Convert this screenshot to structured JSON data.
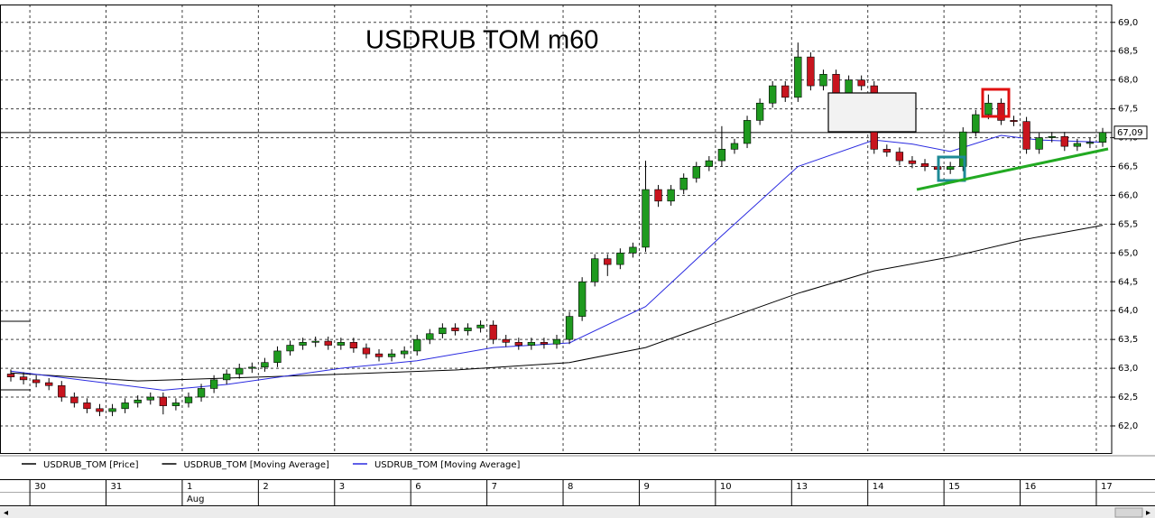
{
  "chart_data": {
    "type": "candlestick",
    "title": "USDRUB TOM  m60",
    "categories": [
      null,
      null,
      "30",
      null,
      null,
      null,
      null,
      null,
      "31",
      null,
      null,
      null,
      null,
      null,
      "1",
      null,
      null,
      null,
      null,
      null,
      "2",
      null,
      null,
      null,
      null,
      null,
      "3",
      null,
      null,
      null,
      null,
      null,
      "6",
      null,
      null,
      null,
      null,
      null,
      "7",
      null,
      null,
      null,
      null,
      null,
      "8",
      null,
      null,
      null,
      null,
      null,
      "9",
      null,
      null,
      null,
      null,
      null,
      "10",
      null,
      null,
      null,
      null,
      null,
      "13",
      null,
      null,
      null,
      null,
      null,
      "14",
      null,
      null,
      null,
      null,
      null,
      "15",
      null,
      null,
      null,
      null,
      null,
      "16",
      null,
      null,
      null,
      null,
      null,
      "17"
    ],
    "months": [
      null,
      null,
      null,
      null,
      null,
      null,
      null,
      null,
      null,
      null,
      null,
      null,
      null,
      null,
      "Aug",
      null,
      null,
      null,
      null,
      null,
      null,
      null,
      null,
      null,
      null,
      null,
      null,
      null,
      null,
      null,
      null,
      null,
      null,
      null,
      null,
      null,
      null,
      null,
      null,
      null,
      null,
      null,
      null,
      null,
      null,
      null,
      null,
      null,
      null,
      null,
      null,
      null,
      null,
      null,
      null,
      null,
      null,
      null,
      null,
      null,
      null,
      null,
      null,
      null,
      null,
      null,
      null,
      null,
      null,
      null,
      null,
      null,
      null,
      null,
      null,
      null,
      null,
      null,
      null,
      null,
      null,
      null,
      null,
      null,
      null,
      null,
      null
    ],
    "open": [
      62.9,
      62.85,
      62.8,
      62.75,
      62.7,
      62.5,
      62.4,
      62.3,
      62.25,
      62.3,
      62.4,
      62.45,
      62.5,
      62.35,
      62.4,
      62.5,
      62.65,
      62.8,
      62.9,
      63.0,
      63.02,
      63.1,
      63.3,
      63.4,
      63.45,
      63.47,
      63.4,
      63.45,
      63.35,
      63.25,
      63.2,
      63.25,
      63.3,
      63.5,
      63.6,
      63.7,
      63.65,
      63.7,
      63.75,
      63.5,
      63.45,
      63.4,
      63.45,
      63.42,
      63.5,
      63.9,
      64.5,
      64.9,
      64.8,
      65.0,
      65.1,
      66.1,
      65.9,
      66.1,
      66.3,
      66.5,
      66.6,
      66.8,
      66.9,
      67.3,
      67.6,
      67.9,
      67.7,
      68.4,
      67.9,
      68.1,
      67.4,
      68.0,
      67.9,
      66.8,
      66.75,
      66.6,
      66.55,
      66.5,
      66.45,
      66.5,
      67.1,
      67.4,
      67.6,
      67.3,
      67.28,
      66.8,
      67.0,
      67.02,
      66.85,
      66.9,
      66.92
    ],
    "high": [
      62.98,
      62.93,
      62.88,
      62.83,
      62.78,
      62.58,
      62.48,
      62.38,
      62.38,
      62.48,
      62.53,
      62.58,
      62.58,
      62.48,
      62.58,
      62.73,
      62.88,
      62.98,
      63.08,
      63.1,
      63.18,
      63.38,
      63.48,
      63.53,
      63.55,
      63.55,
      63.53,
      63.53,
      63.43,
      63.33,
      63.33,
      63.38,
      63.58,
      63.68,
      63.78,
      63.78,
      63.78,
      63.83,
      63.83,
      63.58,
      63.53,
      63.53,
      63.53,
      63.58,
      63.98,
      64.58,
      64.98,
      64.98,
      65.08,
      65.18,
      66.6,
      66.18,
      66.18,
      66.38,
      66.58,
      66.68,
      67.2,
      66.98,
      67.38,
      67.68,
      67.98,
      67.98,
      68.65,
      68.48,
      68.18,
      68.18,
      68.08,
      68.08,
      67.98,
      66.88,
      66.83,
      66.68,
      66.63,
      66.58,
      66.58,
      67.18,
      67.48,
      67.75,
      67.68,
      67.38,
      67.36,
      67.08,
      67.1,
      67.1,
      66.98,
      67.0,
      67.17
    ],
    "low": [
      62.77,
      62.72,
      62.67,
      62.62,
      62.42,
      62.32,
      62.22,
      62.17,
      62.17,
      62.22,
      62.32,
      62.37,
      62.2,
      62.27,
      62.32,
      62.42,
      62.57,
      62.72,
      62.82,
      62.92,
      62.94,
      63.02,
      63.22,
      63.32,
      63.37,
      63.32,
      63.32,
      63.27,
      63.17,
      63.12,
      63.12,
      63.17,
      63.22,
      63.42,
      63.52,
      63.57,
      63.57,
      63.62,
      63.42,
      63.37,
      63.32,
      63.32,
      63.34,
      63.34,
      63.42,
      63.82,
      64.42,
      64.6,
      64.72,
      64.92,
      65.02,
      65.8,
      65.82,
      66.02,
      66.22,
      66.42,
      66.5,
      66.72,
      66.82,
      67.22,
      67.52,
      67.62,
      67.62,
      67.82,
      67.82,
      67.3,
      67.32,
      67.82,
      66.72,
      66.67,
      66.52,
      66.47,
      66.42,
      66.37,
      66.37,
      66.42,
      67.02,
      67.32,
      67.22,
      67.2,
      66.72,
      66.72,
      66.92,
      66.77,
      66.77,
      66.82,
      66.84
    ],
    "close": [
      62.85,
      62.8,
      62.75,
      62.7,
      62.5,
      62.4,
      62.3,
      62.25,
      62.3,
      62.4,
      62.45,
      62.5,
      62.35,
      62.4,
      62.5,
      62.65,
      62.8,
      62.9,
      63.0,
      63.02,
      63.1,
      63.3,
      63.4,
      63.45,
      63.47,
      63.4,
      63.45,
      63.35,
      63.25,
      63.2,
      63.25,
      63.3,
      63.5,
      63.6,
      63.7,
      63.65,
      63.7,
      63.75,
      63.5,
      63.45,
      63.4,
      63.45,
      63.42,
      63.5,
      63.9,
      64.5,
      64.9,
      64.8,
      65.0,
      65.1,
      66.1,
      65.9,
      66.1,
      66.3,
      66.5,
      66.6,
      66.8,
      66.9,
      67.3,
      67.6,
      67.9,
      67.7,
      68.4,
      67.9,
      68.1,
      67.4,
      68.0,
      67.9,
      66.8,
      66.75,
      66.6,
      66.55,
      66.5,
      66.45,
      66.5,
      67.1,
      67.4,
      67.6,
      67.3,
      67.28,
      66.8,
      67.0,
      67.02,
      66.85,
      66.9,
      66.92,
      67.09
    ],
    "up_color": "#1f9a1f",
    "down_color": "#c8141e",
    "price_name": "USDRUB_TOM [Price]",
    "last_price": {
      "value": 67.09,
      "label": "67,09"
    },
    "series": [
      {
        "name": "USDRUB_TOM [Moving Average]",
        "color": "#000000",
        "x": [
          0,
          10,
          20,
          35,
          44,
          50,
          56,
          62,
          68,
          74,
          80,
          86
        ],
        "values": [
          62.92,
          62.78,
          62.85,
          62.97,
          63.1,
          63.36,
          63.83,
          64.3,
          64.69,
          64.93,
          65.24,
          65.48
        ]
      },
      {
        "name": "USDRUB_TOM [Moving Average]",
        "color": "#2a2ae0",
        "x": [
          0,
          12,
          17,
          26,
          32,
          38,
          44,
          50,
          56,
          62,
          68,
          71,
          74,
          78,
          81,
          86
        ],
        "values": [
          62.95,
          62.62,
          62.72,
          63.0,
          63.13,
          63.36,
          63.44,
          64.07,
          65.3,
          66.5,
          66.96,
          66.89,
          66.76,
          67.04,
          66.96,
          66.92
        ]
      }
    ],
    "ylim": [
      61.53,
      69.31
    ],
    "yticks": [
      {
        "value": 62,
        "label": "62,0"
      },
      {
        "value": 62.5,
        "label": "62,5"
      },
      {
        "value": 63,
        "label": "63,0"
      },
      {
        "value": 63.5,
        "label": "63,5"
      },
      {
        "value": 64,
        "label": "64,0"
      },
      {
        "value": 64.5,
        "label": "64,5"
      },
      {
        "value": 65,
        "label": "65,0"
      },
      {
        "value": 65.5,
        "label": "65,5"
      },
      {
        "value": 66,
        "label": "66,0"
      },
      {
        "value": 66.5,
        "label": "66,5"
      },
      {
        "value": 67,
        "label": "67,0"
      },
      {
        "value": 67.5,
        "label": "67,5"
      },
      {
        "value": 68,
        "label": "68,0"
      },
      {
        "value": 68.5,
        "label": "68,5"
      },
      {
        "value": 69,
        "label": "69,0"
      }
    ],
    "grid": true
  }
}
